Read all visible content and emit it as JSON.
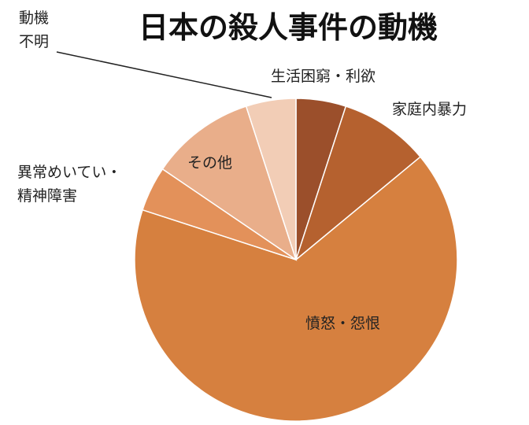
{
  "chart_data": {
    "type": "pie",
    "title": "日本の殺人事件の動機",
    "categories": [
      "生活困窮・利欲",
      "家庭内暴力",
      "憤怒・怨恨",
      "異常めいてい・精神障害",
      "その他",
      "動機不明"
    ],
    "values": [
      5,
      9,
      66,
      4.5,
      10.5,
      5
    ],
    "colors": [
      "#9b4f2b",
      "#b5612f",
      "#d6803f",
      "#e3915a",
      "#e9ae8a",
      "#f2cdb6"
    ]
  }
}
